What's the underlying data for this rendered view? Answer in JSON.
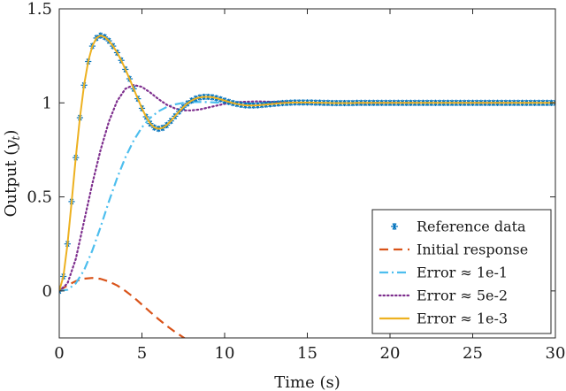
{
  "chart_data": {
    "type": "line",
    "xlabel": "Time (s)",
    "ylabel": "Output (y_t)",
    "ylabel_main": "Output (",
    "ylabel_sym": "y",
    "ylabel_sub": "t",
    "ylabel_close": ")",
    "xlim": [
      0,
      30
    ],
    "ylim": [
      -0.25,
      1.5
    ],
    "xticks": [
      0,
      5,
      10,
      15,
      20,
      25,
      30
    ],
    "yticks": [
      0,
      0.5,
      1,
      1.5
    ],
    "xtick_labels": [
      "0",
      "5",
      "10",
      "15",
      "20",
      "25",
      "30"
    ],
    "ytick_labels": [
      "0",
      "0.5",
      "1",
      "1.5"
    ],
    "grid": false,
    "legend_position": "bottom-right",
    "series": [
      {
        "name": "Reference data",
        "style": "markers",
        "marker": "asterisk",
        "color": "#0072BD",
        "x": [
          0,
          0.25,
          0.5,
          0.75,
          1,
          1.25,
          1.5,
          1.75,
          2,
          2.25,
          2.5,
          2.75,
          3,
          3.25,
          3.5,
          3.75,
          4,
          4.25,
          4.5,
          4.75,
          5,
          5.25,
          5.5,
          5.75,
          6,
          6.25,
          6.5,
          6.75,
          7,
          7.25,
          7.5,
          7.75,
          8,
          8.25,
          8.5,
          8.75,
          9,
          9.25,
          9.5,
          9.75,
          10,
          10.25,
          10.5,
          10.75,
          11,
          11.25,
          11.5,
          11.75,
          12,
          12.25,
          12.5,
          12.75,
          13,
          13.25,
          13.5,
          13.75,
          14,
          14.25,
          14.5,
          14.75,
          15,
          15.25,
          15.5,
          15.75,
          16,
          16.25,
          16.5,
          16.75,
          17,
          17.25,
          17.5,
          17.75,
          18,
          18.25,
          18.5,
          18.75,
          19,
          19.25,
          19.5,
          19.75,
          20,
          20.25,
          20.5,
          20.75,
          21,
          21.25,
          21.5,
          21.75,
          22,
          22.25,
          22.5,
          22.75,
          23,
          23.25,
          23.5,
          23.75,
          24,
          24.25,
          24.5,
          24.75,
          25,
          25.25,
          25.5,
          25.75,
          26,
          26.25,
          26.5,
          26.75,
          27,
          27.25,
          27.5,
          27.75,
          28,
          28.25,
          28.5,
          28.75,
          29,
          29.25,
          29.5,
          29.75,
          30
        ],
        "y": [
          0.0,
          0.077,
          0.25,
          0.475,
          0.709,
          0.921,
          1.094,
          1.22,
          1.302,
          1.345,
          1.358,
          1.35,
          1.33,
          1.302,
          1.267,
          1.226,
          1.178,
          1.128,
          1.075,
          1.022,
          0.971,
          0.926,
          0.89,
          0.869,
          0.862,
          0.867,
          0.882,
          0.904,
          0.929,
          0.954,
          0.977,
          0.997,
          1.012,
          1.023,
          1.029,
          1.032,
          1.032,
          1.03,
          1.025,
          1.019,
          1.012,
          1.005,
          0.999,
          0.994,
          0.99,
          0.987,
          0.986,
          0.986,
          0.987,
          0.989,
          0.991,
          0.993,
          0.995,
          0.997,
          0.999,
          1.0,
          1.001,
          1.002,
          1.002,
          1.002,
          1.002,
          1.002,
          1.001,
          1.001,
          1.0,
          1.0,
          0.999,
          0.999,
          0.999,
          0.999,
          0.999,
          0.999,
          1.0,
          1.0,
          1.0,
          1.0,
          1.0,
          1.0,
          1.0,
          1.0,
          1.0,
          1.0,
          1.0,
          1.0,
          1.0,
          1.0,
          1.0,
          1.0,
          1.0,
          1.0,
          1.0,
          1.0,
          1.0,
          1.0,
          1.0,
          1.0,
          1.0,
          1.0,
          1.0,
          1.0,
          1.0,
          1.0,
          1.0,
          1.0,
          1.0,
          1.0,
          1.0,
          1.0,
          1.0,
          1.0,
          1.0,
          1.0,
          1.0,
          1.0,
          1.0,
          1.0,
          1.0,
          1.0,
          1.0,
          1.0,
          1.0
        ]
      },
      {
        "name": "Initial response",
        "style": "dashed",
        "color": "#D95319",
        "x": [
          0,
          0.5,
          1,
          1.5,
          2,
          2.5,
          3,
          3.5,
          4,
          4.5,
          5,
          5.5,
          6,
          6.5,
          7,
          7.5,
          8
        ],
        "y": [
          0.0,
          0.03,
          0.052,
          0.065,
          0.069,
          0.064,
          0.05,
          0.029,
          0.0,
          -0.034,
          -0.073,
          -0.112,
          -0.15,
          -0.186,
          -0.218,
          -0.247,
          -0.275
        ]
      },
      {
        "name": "Error ≈ 1e-1",
        "style": "dashdot",
        "color": "#4DBEEE",
        "x": [
          0,
          0.5,
          1,
          1.5,
          2,
          2.5,
          3,
          3.5,
          4,
          4.5,
          5,
          5.5,
          6,
          6.5,
          7,
          7.5,
          8,
          8.5,
          9,
          9.5,
          10,
          10.5,
          11,
          11.5,
          12,
          13,
          14,
          15,
          16,
          18,
          20,
          25,
          30
        ],
        "y": [
          0.0,
          0.006,
          0.04,
          0.11,
          0.215,
          0.34,
          0.475,
          0.6,
          0.71,
          0.8,
          0.87,
          0.92,
          0.955,
          0.978,
          0.992,
          1.0,
          1.004,
          1.005,
          1.004,
          1.002,
          1.0,
          0.998,
          0.997,
          0.997,
          0.998,
          0.999,
          1.0,
          1.0,
          1.0,
          1.0,
          1.0,
          1.0,
          1.0
        ]
      },
      {
        "name": "Error ≈ 5e-2",
        "style": "dotted",
        "color": "#7E2F8E",
        "x": [
          0,
          0.5,
          1,
          1.5,
          2,
          2.5,
          3,
          3.5,
          4,
          4.5,
          5,
          5.5,
          6,
          6.5,
          7,
          7.5,
          8,
          8.5,
          9,
          9.5,
          10,
          11,
          12,
          13,
          14,
          15,
          16,
          18,
          20,
          25,
          30
        ],
        "y": [
          0.0,
          0.04,
          0.17,
          0.37,
          0.57,
          0.75,
          0.9,
          1.01,
          1.075,
          1.095,
          1.085,
          1.055,
          1.02,
          0.99,
          0.97,
          0.96,
          0.96,
          0.965,
          0.975,
          0.985,
          0.995,
          1.005,
          1.008,
          1.005,
          1.002,
          1.0,
          0.999,
          0.999,
          1.0,
          1.0,
          1.0
        ]
      },
      {
        "name": "Error ≈ 1e-3",
        "style": "solid",
        "color": "#EDB120",
        "x": [
          0,
          0.25,
          0.5,
          0.75,
          1,
          1.25,
          1.5,
          1.75,
          2,
          2.25,
          2.5,
          2.75,
          3,
          3.25,
          3.5,
          3.75,
          4,
          4.25,
          4.5,
          4.75,
          5,
          5.25,
          5.5,
          5.75,
          6,
          6.25,
          6.5,
          6.75,
          7,
          7.25,
          7.5,
          7.75,
          8,
          8.25,
          8.5,
          8.75,
          9,
          9.25,
          9.5,
          9.75,
          10,
          10.25,
          10.5,
          10.75,
          11,
          11.25,
          11.5,
          11.75,
          12,
          12.25,
          12.5,
          12.75,
          13,
          13.25,
          13.5,
          13.75,
          14,
          14.25,
          14.5,
          14.75,
          15,
          15.25,
          15.5,
          15.75,
          16,
          16.25,
          16.5,
          16.75,
          17,
          17.25,
          17.5,
          17.75,
          18,
          18.25,
          18.5,
          18.75,
          19,
          19.25,
          19.5,
          19.75,
          20,
          20.25,
          20.5,
          20.75,
          21,
          21.25,
          21.5,
          21.75,
          22,
          22.25,
          22.5,
          22.75,
          23,
          23.25,
          23.5,
          23.75,
          24,
          24.25,
          24.5,
          24.75,
          25,
          25.25,
          25.5,
          25.75,
          26,
          26.25,
          26.5,
          26.75,
          27,
          27.25,
          27.5,
          27.75,
          28,
          28.25,
          28.5,
          28.75,
          29,
          29.25,
          29.5,
          29.75,
          30
        ],
        "y": [
          0.0,
          0.077,
          0.25,
          0.475,
          0.709,
          0.921,
          1.094,
          1.22,
          1.302,
          1.345,
          1.358,
          1.35,
          1.33,
          1.302,
          1.267,
          1.226,
          1.178,
          1.128,
          1.075,
          1.022,
          0.971,
          0.926,
          0.89,
          0.869,
          0.862,
          0.867,
          0.882,
          0.904,
          0.929,
          0.954,
          0.977,
          0.997,
          1.012,
          1.023,
          1.029,
          1.032,
          1.032,
          1.03,
          1.025,
          1.019,
          1.012,
          1.005,
          0.999,
          0.994,
          0.99,
          0.987,
          0.986,
          0.986,
          0.987,
          0.989,
          0.991,
          0.993,
          0.995,
          0.997,
          0.999,
          1.0,
          1.001,
          1.002,
          1.002,
          1.002,
          1.002,
          1.002,
          1.001,
          1.001,
          1.0,
          1.0,
          0.999,
          0.999,
          0.999,
          0.999,
          0.999,
          0.999,
          1.0,
          1.0,
          1.0,
          1.0,
          1.0,
          1.0,
          1.0,
          1.0,
          1.0,
          1.0,
          1.0,
          1.0,
          1.0,
          1.0,
          1.0,
          1.0,
          1.0,
          1.0,
          1.0,
          1.0,
          1.0,
          1.0,
          1.0,
          1.0,
          1.0,
          1.0,
          1.0,
          1.0,
          1.0,
          1.0,
          1.0,
          1.0,
          1.0,
          1.0,
          1.0,
          1.0,
          1.0,
          1.0,
          1.0,
          1.0,
          1.0,
          1.0,
          1.0,
          1.0,
          1.0,
          1.0,
          1.0,
          1.0,
          1.0
        ]
      }
    ]
  }
}
